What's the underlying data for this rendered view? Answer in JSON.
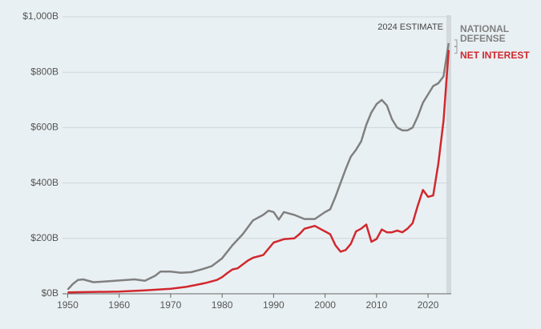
{
  "chart_data": {
    "type": "line",
    "annotation": "2024 ESTIMATE",
    "xlim": [
      1949,
      2024.5
    ],
    "xticks": [
      1950,
      1960,
      1970,
      1980,
      1990,
      2000,
      2010,
      2020
    ],
    "ylim": [
      0,
      1000
    ],
    "yticks": [
      {
        "value": 0,
        "label": "$0B"
      },
      {
        "value": 200,
        "label": "$200B"
      },
      {
        "value": 400,
        "label": "$400B"
      },
      {
        "value": 600,
        "label": "$600B"
      },
      {
        "value": 800,
        "label": "$800B"
      },
      {
        "value": 1000,
        "label": "$1,000B"
      }
    ],
    "grid": true,
    "series": [
      {
        "name": "NATIONAL DEFENSE",
        "color": "#808080",
        "x": [
          1950,
          1951,
          1952,
          1953,
          1955,
          1957,
          1960,
          1963,
          1965,
          1967,
          1968,
          1970,
          1972,
          1974,
          1976,
          1978,
          1980,
          1982,
          1984,
          1986,
          1988,
          1989,
          1990,
          1991,
          1992,
          1994,
          1996,
          1998,
          2000,
          2001,
          2002,
          2003,
          2004,
          2005,
          2006,
          2007,
          2008,
          2009,
          2010,
          2011,
          2012,
          2013,
          2014,
          2015,
          2016,
          2017,
          2018,
          2019,
          2020,
          2021,
          2022,
          2023,
          2024
        ],
        "values": [
          15,
          35,
          50,
          52,
          42,
          44,
          48,
          52,
          47,
          65,
          80,
          80,
          76,
          78,
          88,
          100,
          128,
          175,
          215,
          265,
          285,
          300,
          295,
          268,
          295,
          285,
          270,
          270,
          295,
          305,
          350,
          400,
          450,
          495,
          520,
          550,
          610,
          655,
          685,
          700,
          680,
          630,
          600,
          590,
          590,
          600,
          640,
          690,
          720,
          750,
          760,
          785,
          905
        ]
      },
      {
        "name": "NET INTEREST",
        "color": "#d0282e",
        "x": [
          1950,
          1960,
          1965,
          1970,
          1973,
          1975,
          1977,
          1979,
          1980,
          1981,
          1982,
          1983,
          1985,
          1986,
          1988,
          1990,
          1992,
          1994,
          1995,
          1996,
          1998,
          1999,
          2000,
          2001,
          2002,
          2003,
          2004,
          2005,
          2006,
          2007,
          2008,
          2009,
          2010,
          2011,
          2012,
          2013,
          2014,
          2015,
          2016,
          2017,
          2018,
          2019,
          2020,
          2021,
          2022,
          2023,
          2024
        ],
        "values": [
          5,
          8,
          12,
          18,
          25,
          32,
          40,
          50,
          60,
          75,
          88,
          92,
          120,
          130,
          140,
          185,
          197,
          200,
          215,
          235,
          245,
          235,
          225,
          215,
          175,
          152,
          158,
          180,
          225,
          235,
          250,
          188,
          198,
          232,
          222,
          222,
          228,
          222,
          235,
          255,
          318,
          375,
          350,
          355,
          470,
          625,
          880
        ]
      }
    ]
  }
}
